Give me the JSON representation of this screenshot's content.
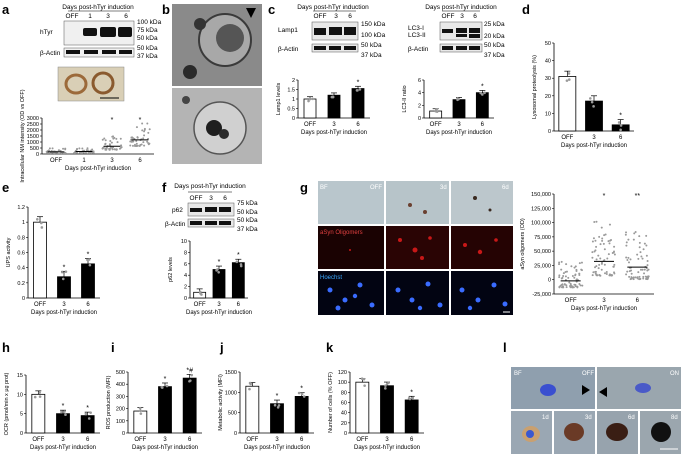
{
  "panel_letters": [
    "a",
    "b",
    "c",
    "d",
    "e",
    "f",
    "g",
    "h",
    "i",
    "j",
    "k",
    "l"
  ],
  "common": {
    "xlabel": "Days post-hTyr induction",
    "off": "OFF"
  },
  "panel_a": {
    "header": "Days post-hTyr induction",
    "lanes": [
      "OFF",
      "1",
      "3",
      "6"
    ],
    "blot_labels": [
      "hTyr",
      "β-Actin"
    ],
    "kda": [
      "100 kDa",
      "75 kDa",
      "50 kDa",
      "50 kDa",
      "37 kDa"
    ]
  },
  "panel_c": {
    "header_left": "Days post-hTyr induction",
    "header_right": "Days post-hTyr induction",
    "lanes": [
      "OFF",
      "3",
      "6"
    ],
    "left_labels": [
      "Lamp1",
      "β-Actin"
    ],
    "left_kda": [
      "150 kDa",
      "100 kDa",
      "50 kDa",
      "37 kDa"
    ],
    "right_labels": [
      "LC3-I",
      "LC3-II",
      "β-Actin"
    ],
    "right_kda": [
      "25 kDa",
      "20 kDa",
      "50 kDa",
      "37 kDa"
    ]
  },
  "panel_f": {
    "header": "Days post-hTyr induction",
    "lanes": [
      "OFF",
      "3",
      "6"
    ],
    "blot_labels": [
      "p62",
      "β-Actin"
    ],
    "kda": [
      "75 kDa",
      "50 kDa",
      "50 kDa",
      "37 kDa"
    ]
  },
  "panel_g": {
    "col_labels": [
      "BF",
      "OFF",
      "3d",
      "6d"
    ],
    "row_labels": [
      "aSyn Oligomers",
      "Hoechst"
    ]
  },
  "panel_l": {
    "labels": [
      "BF",
      "OFF",
      "ON",
      "1d",
      "3d",
      "6d",
      "8d"
    ]
  },
  "colors": {
    "bar_filled": "#000000",
    "bar_open": "#ffffff",
    "scatter_gray": "#9a9a9a",
    "hoechst_blue": "#2f66ff",
    "asyn_red": "#d02020"
  },
  "chart_data": [
    {
      "panel": "a",
      "type": "scatter",
      "title": "",
      "xlabel": "Days post-hTyr induction",
      "ylabel": "Intracellular NM intensity (OD vs OFF)",
      "categories": [
        "OFF",
        "1",
        "3",
        "6"
      ],
      "ylim": [
        0,
        3000
      ],
      "yticks": [
        0,
        500,
        1000,
        1500,
        2000,
        2500,
        3000
      ],
      "means": [
        180,
        210,
        650,
        1180
      ],
      "sig": [
        "",
        "",
        "*",
        "*"
      ]
    },
    {
      "panel": "c-left",
      "type": "bar",
      "xlabel": "Days post-hTyr induction",
      "ylabel": "Lamp1 levels",
      "categories": [
        "OFF",
        "3",
        "6"
      ],
      "values": [
        1.0,
        1.2,
        1.55
      ],
      "ylim": [
        0,
        2.0
      ],
      "yticks": [
        0,
        0.5,
        1.0,
        1.5,
        2.0
      ],
      "sig": [
        "",
        "",
        "*"
      ]
    },
    {
      "panel": "c-right",
      "type": "bar",
      "xlabel": "Days post-hTyr induction",
      "ylabel": "LC3-II ratio",
      "categories": [
        "OFF",
        "3",
        "6"
      ],
      "values": [
        1.1,
        2.9,
        4.0
      ],
      "ylim": [
        0,
        6
      ],
      "yticks": [
        0,
        2,
        4,
        6
      ],
      "sig": [
        "",
        "",
        "*"
      ]
    },
    {
      "panel": "d",
      "type": "bar",
      "xlabel": "Days post-hTyr induction",
      "ylabel": "Lysosomal proteolysis (%)",
      "categories": [
        "OFF",
        "3",
        "6"
      ],
      "values": [
        31,
        17,
        3.5
      ],
      "ylim": [
        0,
        50
      ],
      "yticks": [
        0,
        10,
        20,
        30,
        40,
        50
      ],
      "sig": [
        "",
        "",
        "*"
      ]
    },
    {
      "panel": "e",
      "type": "bar",
      "xlabel": "Days post-hTyr induction",
      "ylabel": "UPS activity",
      "categories": [
        "OFF",
        "3",
        "6"
      ],
      "values": [
        1.0,
        0.28,
        0.45
      ],
      "ylim": [
        0,
        1.2
      ],
      "yticks": [
        0,
        0.2,
        0.4,
        0.6,
        0.8,
        1.0,
        1.2
      ],
      "sig": [
        "",
        "*",
        "*"
      ]
    },
    {
      "panel": "f",
      "type": "bar",
      "xlabel": "Days post-hTyr induction",
      "ylabel": "p62 levels",
      "categories": [
        "OFF",
        "3",
        "6"
      ],
      "values": [
        1.0,
        5.0,
        6.2
      ],
      "ylim": [
        0,
        10
      ],
      "yticks": [
        0,
        2,
        4,
        6,
        8,
        10
      ],
      "sig": [
        "",
        "*",
        "*"
      ]
    },
    {
      "panel": "g",
      "type": "scatter",
      "xlabel": "Days post-hTyr induction",
      "ylabel": "aSyn oligomers (OD)",
      "categories": [
        "OFF",
        "3",
        "6"
      ],
      "ylim": [
        -25000,
        150000
      ],
      "yticks": [
        -25000,
        0,
        25000,
        50000,
        75000,
        100000,
        125000,
        150000
      ],
      "means": [
        -2000,
        32000,
        22000
      ],
      "sig": [
        "",
        "*",
        "**"
      ]
    },
    {
      "panel": "h",
      "type": "bar",
      "xlabel": "Days post-hTyr induction",
      "ylabel": "OCR (pmol/min x µg prot)",
      "categories": [
        "OFF",
        "3",
        "6"
      ],
      "values": [
        10,
        5,
        4.5
      ],
      "ylim": [
        0,
        15
      ],
      "yticks": [
        0,
        5,
        10,
        15
      ],
      "sig": [
        "",
        "*",
        "*"
      ]
    },
    {
      "panel": "i",
      "type": "bar",
      "xlabel": "Days post-hTyr induction",
      "ylabel": "ROS production (MFI)",
      "categories": [
        "OFF",
        "3",
        "6"
      ],
      "values": [
        180,
        380,
        450
      ],
      "ylim": [
        0,
        500
      ],
      "yticks": [
        0,
        100,
        200,
        300,
        400,
        500
      ],
      "sig": [
        "",
        "*",
        "*#"
      ]
    },
    {
      "panel": "j",
      "type": "bar",
      "xlabel": "Days post-hTyr induction",
      "ylabel": "Metabolic activity (MFI)",
      "categories": [
        "OFF",
        "3",
        "6"
      ],
      "values": [
        1150,
        720,
        900
      ],
      "ylim": [
        0,
        1500
      ],
      "yticks": [
        0,
        500,
        1000,
        1500
      ],
      "sig": [
        "",
        "*",
        "*"
      ]
    },
    {
      "panel": "k",
      "type": "bar",
      "xlabel": "Days post-hTyr induction",
      "ylabel": "Number of cells (% OFF)",
      "categories": [
        "OFF",
        "3",
        "6"
      ],
      "values": [
        100,
        93,
        65
      ],
      "ylim": [
        0,
        120
      ],
      "yticks": [
        0,
        20,
        40,
        60,
        80,
        100,
        120
      ],
      "sig": [
        "",
        "",
        "*"
      ]
    }
  ]
}
